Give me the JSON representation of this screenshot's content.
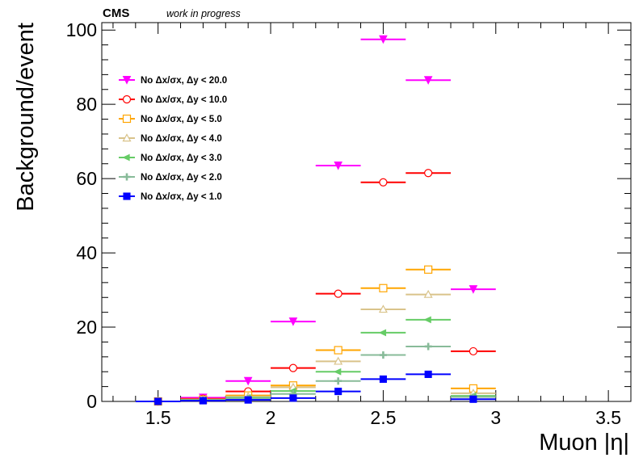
{
  "header": {
    "experiment": "CMS",
    "status": "work in progress"
  },
  "chart_data": {
    "type": "scatter",
    "xlabel": "Muon |η|",
    "ylabel": "Background/event",
    "xlim": [
      1.25,
      3.6
    ],
    "ylim": [
      0,
      102
    ],
    "xticks": [
      1.5,
      2,
      2.5,
      3,
      3.5
    ],
    "yticks": [
      0,
      20,
      40,
      60,
      80,
      100
    ],
    "grid": false,
    "legend_position": "top-left",
    "x_bin_centers": [
      1.5,
      1.7,
      1.9,
      2.1,
      2.3,
      2.5,
      2.7,
      2.9
    ],
    "x_bin_half_width": 0.1,
    "series": [
      {
        "name": "No Δx/σx, Δy < 20.0",
        "color": "#ff00ff",
        "marker": "triangle-down",
        "values": [
          0,
          1.0,
          5.5,
          21.5,
          63.5,
          97.5,
          86.5,
          30.2
        ]
      },
      {
        "name": "No Δx/σx, Δy < 10.0",
        "color": "#ff0000",
        "marker": "circle-open",
        "values": [
          0,
          0.7,
          2.7,
          9.0,
          29.0,
          59.0,
          61.5,
          13.5
        ]
      },
      {
        "name": "No Δx/σx, Δy < 5.0",
        "color": "#ffa500",
        "marker": "square-open",
        "values": [
          0,
          0.5,
          1.6,
          4.3,
          13.8,
          30.5,
          35.5,
          3.5
        ]
      },
      {
        "name": "No Δx/σx, Δy < 4.0",
        "color": "#d9c38a",
        "marker": "triangle-up-open",
        "values": [
          0,
          0.5,
          1.3,
          3.8,
          10.8,
          24.8,
          28.8,
          2.2
        ]
      },
      {
        "name": "No Δx/σx, Δy < 3.0",
        "color": "#66cc66",
        "marker": "triangle-left",
        "values": [
          0,
          0.4,
          1.0,
          2.8,
          8.0,
          18.5,
          22.0,
          1.5
        ]
      },
      {
        "name": "No Δx/σx, Δy < 2.0",
        "color": "#88bb99",
        "marker": "cross",
        "values": [
          0,
          0.3,
          0.8,
          2.0,
          5.5,
          12.5,
          14.8,
          1.2
        ]
      },
      {
        "name": "No Δx/σx, Δy < 1.0",
        "color": "#0000ff",
        "marker": "square",
        "values": [
          0,
          0.2,
          0.4,
          0.9,
          2.7,
          6.0,
          7.3,
          0.6
        ]
      }
    ]
  }
}
